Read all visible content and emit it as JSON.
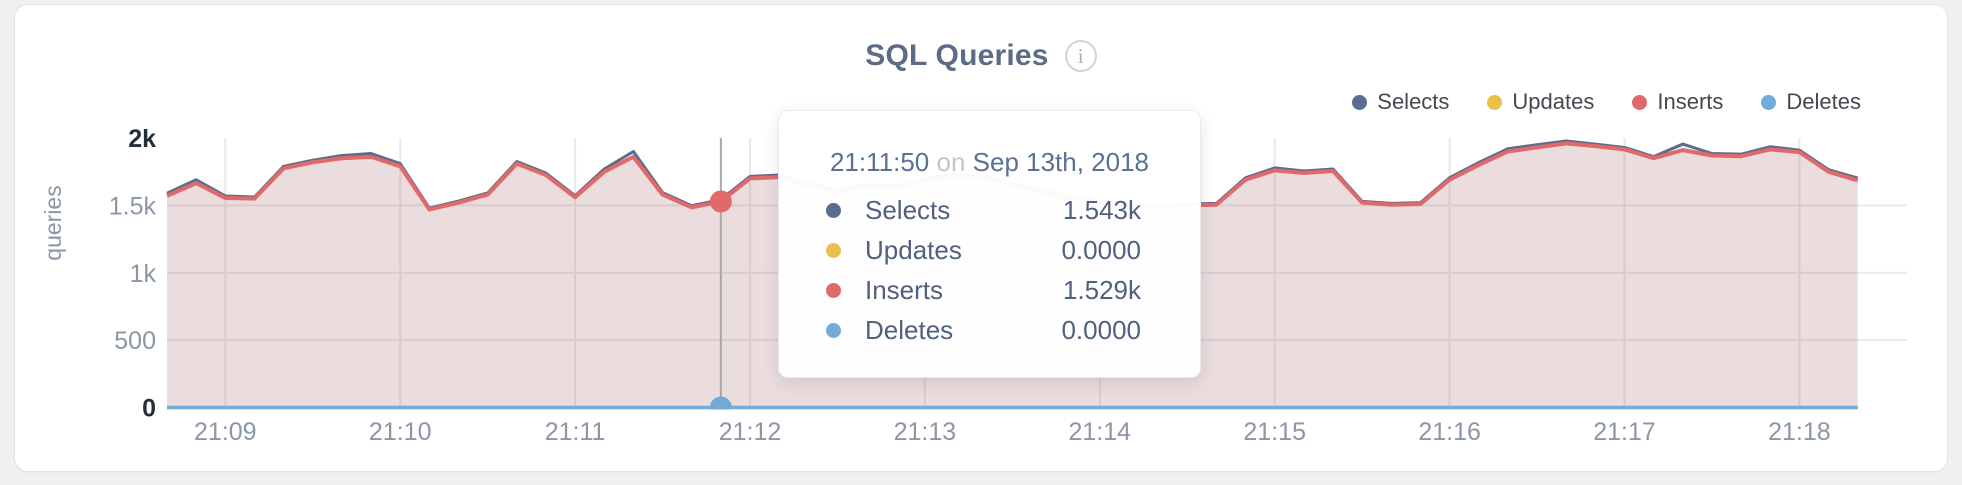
{
  "header": {
    "title": "SQL Queries",
    "info_glyph": "i"
  },
  "tooltip": {
    "time": "21:11:50",
    "conj": "on",
    "date": "Sep 13th, 2018",
    "rows": [
      {
        "label": "Selects",
        "value": "1.543k",
        "color": "#5b6d8c"
      },
      {
        "label": "Updates",
        "value": "0.0000",
        "color": "#e8c04b"
      },
      {
        "label": "Inserts",
        "value": "1.529k",
        "color": "#e06a6a"
      },
      {
        "label": "Deletes",
        "value": "0.0000",
        "color": "#72abd7"
      }
    ]
  },
  "chart_data": {
    "type": "area",
    "title": "SQL Queries",
    "ylabel": "queries",
    "ylim": [
      0,
      2000
    ],
    "grid": true,
    "legend_position": "top-right",
    "grid_color": "#e9e9eb",
    "hover_line_color": "#a8a8ac",
    "ytick_values": [
      0,
      500,
      1000,
      1500,
      2000
    ],
    "ytick_labels": [
      "0",
      "500",
      "1k",
      "1.5k",
      "2k"
    ],
    "xticks": [
      "21:09",
      "21:10",
      "21:11",
      "21:12",
      "21:13",
      "21:14",
      "21:15",
      "21:16",
      "21:17",
      "21:18"
    ],
    "x": [
      "21:08:40",
      "21:08:50",
      "21:09:00",
      "21:09:10",
      "21:09:20",
      "21:09:30",
      "21:09:40",
      "21:09:50",
      "21:10:00",
      "21:10:10",
      "21:10:20",
      "21:10:30",
      "21:10:40",
      "21:10:50",
      "21:11:00",
      "21:11:10",
      "21:11:20",
      "21:11:30",
      "21:11:40",
      "21:11:50",
      "21:12:00",
      "21:12:10",
      "21:12:20",
      "21:12:30",
      "21:12:40",
      "21:12:50",
      "21:13:00",
      "21:13:10",
      "21:13:20",
      "21:13:30",
      "21:13:40",
      "21:13:50",
      "21:14:00",
      "21:14:10",
      "21:14:20",
      "21:14:30",
      "21:14:40",
      "21:14:50",
      "21:15:00",
      "21:15:10",
      "21:15:20",
      "21:15:30",
      "21:15:40",
      "21:15:50",
      "21:16:00",
      "21:16:10",
      "21:16:20",
      "21:16:30",
      "21:16:40",
      "21:16:50",
      "21:17:00",
      "21:17:10",
      "21:17:20",
      "21:17:30",
      "21:17:40",
      "21:17:50",
      "21:18:00",
      "21:18:10",
      "21:18:20"
    ],
    "series": [
      {
        "name": "Selects",
        "color": "#5b6d8c",
        "fill": "rgba(91,110,140,0.10)",
        "line_width": 3,
        "values": [
          1590,
          1690,
          1570,
          1562,
          1790,
          1835,
          1870,
          1885,
          1810,
          1480,
          1532,
          1592,
          1825,
          1740,
          1572,
          1770,
          1900,
          1595,
          1497,
          1543,
          1715,
          1725,
          1665,
          1615,
          1655,
          1645,
          1695,
          1735,
          1715,
          1665,
          1615,
          1565,
          1532,
          1510,
          1505,
          1510,
          1515,
          1705,
          1778,
          1755,
          1770,
          1530,
          1515,
          1520,
          1705,
          1818,
          1920,
          1950,
          1978,
          1955,
          1930,
          1862,
          1955,
          1885,
          1880,
          1935,
          1910,
          1765,
          1703
        ]
      },
      {
        "name": "Updates",
        "color": "#e8c04b",
        "fill": "none",
        "line_width": 3,
        "values": [
          0,
          0,
          0,
          0,
          0,
          0,
          0,
          0,
          0,
          0,
          0,
          0,
          0,
          0,
          0,
          0,
          0,
          0,
          0,
          0,
          0,
          0,
          0,
          0,
          0,
          0,
          0,
          0,
          0,
          0,
          0,
          0,
          0,
          0,
          0,
          0,
          0,
          0,
          0,
          0,
          0,
          0,
          0,
          0,
          0,
          0,
          0,
          0,
          0,
          0,
          0,
          0,
          0,
          0,
          0,
          0,
          0,
          0,
          0
        ]
      },
      {
        "name": "Inserts",
        "color": "#e06a6a",
        "fill": "rgba(219,106,106,0.15)",
        "line_width": 4,
        "values": [
          1570,
          1665,
          1555,
          1550,
          1775,
          1820,
          1850,
          1860,
          1790,
          1470,
          1520,
          1580,
          1810,
          1725,
          1560,
          1750,
          1860,
          1580,
          1485,
          1529,
          1700,
          1710,
          1650,
          1600,
          1640,
          1630,
          1680,
          1720,
          1700,
          1650,
          1600,
          1550,
          1520,
          1500,
          1495,
          1500,
          1505,
          1690,
          1760,
          1740,
          1755,
          1520,
          1505,
          1510,
          1690,
          1800,
          1900,
          1930,
          1960,
          1940,
          1915,
          1850,
          1910,
          1870,
          1865,
          1915,
          1895,
          1750,
          1685
        ]
      },
      {
        "name": "Deletes",
        "color": "#72abd7",
        "fill": "none",
        "line_width": 3.5,
        "values": [
          0,
          0,
          0,
          0,
          0,
          0,
          0,
          0,
          0,
          0,
          0,
          0,
          0,
          0,
          0,
          0,
          0,
          0,
          0,
          0,
          0,
          0,
          0,
          0,
          0,
          0,
          0,
          0,
          0,
          0,
          0,
          0,
          0,
          0,
          0,
          0,
          0,
          0,
          0,
          0,
          0,
          0,
          0,
          0,
          0,
          0,
          0,
          0,
          0,
          0,
          0,
          0,
          0,
          0,
          0,
          0,
          0,
          0,
          0
        ]
      }
    ],
    "hover": {
      "index": 19,
      "time": "21:11:50",
      "dot_series": [
        "Inserts",
        "Deletes"
      ]
    }
  }
}
